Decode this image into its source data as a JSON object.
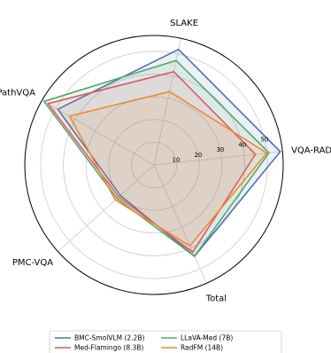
{
  "chart_data": {
    "type": "radar",
    "axes": [
      "VQA-RAD",
      "SLAKE",
      "PathVQA",
      "PMC-VQA",
      "Total"
    ],
    "r_ticks": [
      10,
      20,
      30,
      40,
      50
    ],
    "r_max": 57,
    "grid": true,
    "legend_position": "bottom",
    "series": [
      {
        "name": "BMC-SmolVLM (2.2B)",
        "color": "#4c72b0",
        "values": [
          56,
          52,
          49,
          20,
          44
        ]
      },
      {
        "name": "LLaVA-Med (7B)",
        "color": "#55a868",
        "values": [
          51,
          47,
          56,
          22,
          44
        ]
      },
      {
        "name": "Med-Flamingo (8.3B)",
        "color": "#dd5a63",
        "values": [
          45,
          42,
          54,
          21,
          42
        ]
      },
      {
        "name": "RadFM (14B)",
        "color": "#ed8a33",
        "values": [
          50,
          33,
          43,
          23,
          39
        ]
      }
    ]
  }
}
